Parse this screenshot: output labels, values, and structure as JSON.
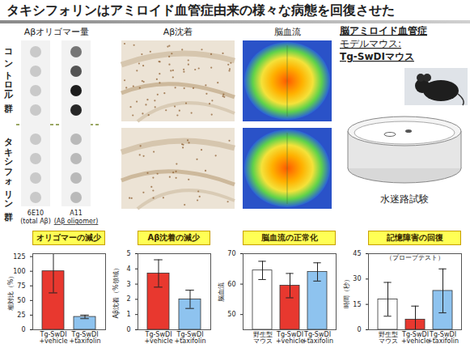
{
  "title": "タキシフォリンはアミロイド血管症由来の様々な病態を回復させた",
  "panels": {
    "oligomer": {
      "label": "Aβオリゴマー量",
      "columns": [
        {
          "name": "6E10",
          "note": "(total Aβ)"
        },
        {
          "name": "A11",
          "note": "(Aβ oligomer)"
        }
      ]
    },
    "deposition": {
      "label": "Aβ沈着"
    },
    "blood_flow": {
      "label": "脳血流"
    },
    "model": {
      "lines": [
        "脳アミロイド血管症",
        "モデルマウス:",
        "Tg-SwDIマウス"
      ]
    },
    "maze": {
      "label": "水迷路試験"
    }
  },
  "groups": [
    "コントロール群",
    "タキシフォリン群"
  ],
  "chart_data": [
    {
      "type": "bar",
      "title": "オリゴマーの減少",
      "ylabel": "相対比（%）",
      "categories": [
        "Tg-SwDI\n+vehicle",
        "Tg-SwDI\n+taxifolin"
      ],
      "values": [
        100,
        22
      ],
      "errors": [
        37,
        3
      ],
      "colors": [
        "#e8382f",
        "#8ec3ef"
      ],
      "ylim": [
        0,
        130
      ],
      "yticks": [
        0,
        25,
        50,
        75,
        100,
        125
      ]
    },
    {
      "type": "bar",
      "title": "Aβ沈着の減少",
      "ylabel": "Aβ沈着（%領域）",
      "categories": [
        "Tg-SwDI\n+vehicle",
        "Tg-SwDI\n+taxifolin"
      ],
      "values": [
        3.7,
        2.0
      ],
      "errors": [
        0.9,
        0.6
      ],
      "colors": [
        "#e8382f",
        "#8ec3ef"
      ],
      "ylim": [
        0,
        5
      ],
      "yticks": [
        0,
        1,
        2,
        3,
        4,
        5
      ]
    },
    {
      "type": "bar",
      "title": "脳血流の正常化",
      "ylabel": "脳血流",
      "categories": [
        "野生型\nマウス",
        "Tg-SwDI\n+vehicle",
        "Tg-SwDI\n+taxifolin"
      ],
      "values": [
        64.5,
        59.5,
        64
      ],
      "errors": [
        3,
        4,
        3
      ],
      "colors": [
        "#ffffff",
        "#e8382f",
        "#8ec3ef"
      ],
      "ylim": [
        45,
        70
      ],
      "yticks": [
        50,
        60,
        70
      ]
    },
    {
      "type": "bar",
      "title": "記憶障害の回復",
      "subtitle": "（プローブテスト）",
      "ylabel": "時間（秒）",
      "categories": [
        "野生型\nマウス",
        "Tg-SwDI\n+vehicle",
        "Tg-SwDI\n+taxifolin"
      ],
      "values": [
        18,
        6,
        23
      ],
      "errors": [
        10,
        8,
        13
      ],
      "colors": [
        "#ffffff",
        "#e8382f",
        "#8ec3ef"
      ],
      "ylim": [
        0,
        45
      ],
      "yticks": [
        0,
        15,
        30,
        45
      ]
    }
  ]
}
